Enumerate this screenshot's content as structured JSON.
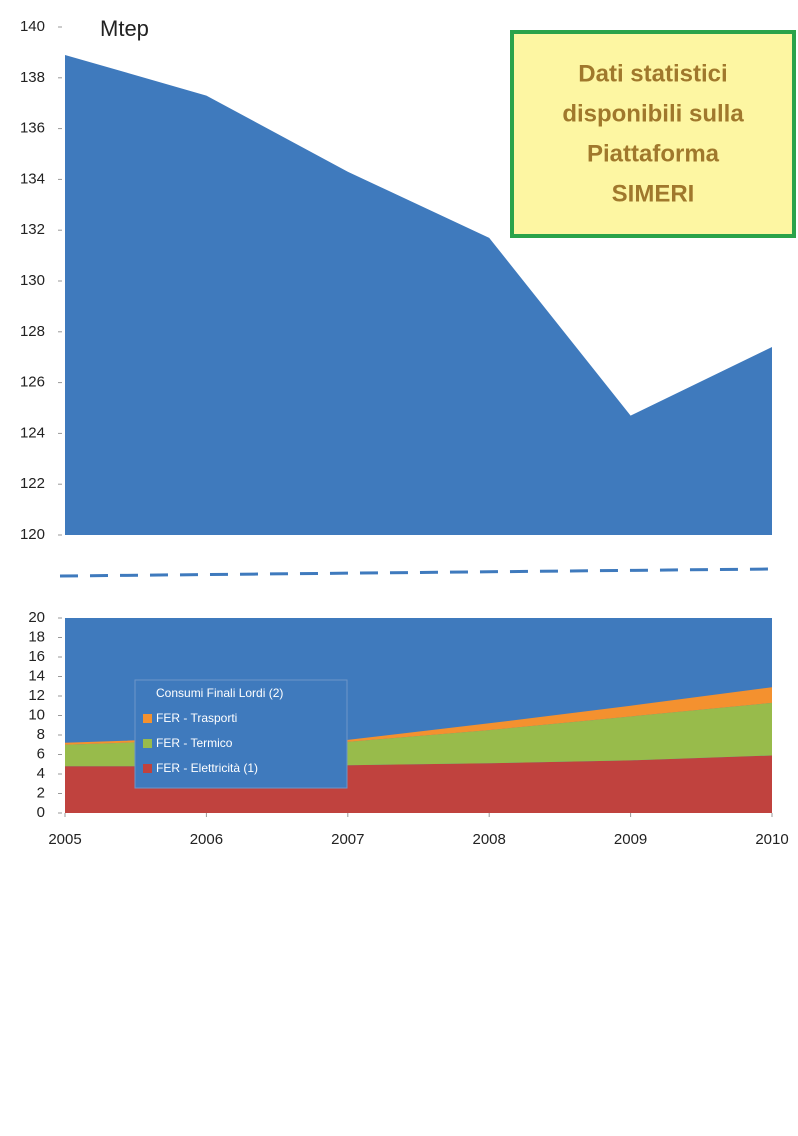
{
  "chart_data": {
    "type": "area",
    "unit_label": "Mtep",
    "annotation": [
      "Dati statistici",
      "disponibili sulla",
      "Piattaforma",
      "SIMERI"
    ],
    "x": [
      2005,
      2006,
      2007,
      2008,
      2009,
      2010
    ],
    "xlim": [
      2005,
      2010
    ],
    "xticks": [
      2005,
      2006,
      2007,
      2008,
      2009,
      2010
    ],
    "ylim": [
      0,
      20
    ],
    "yticks": [
      0,
      2,
      4,
      6,
      8,
      10,
      12,
      14,
      16,
      18,
      20
    ],
    "y2lim": [
      120,
      140
    ],
    "y2ticks": [
      120,
      122,
      124,
      126,
      128,
      130,
      132,
      134,
      136,
      138,
      140
    ],
    "stacked": true,
    "series": [
      {
        "name": "Consumi Finali Lordi (2)",
        "color": "#3f7abd",
        "axis": "y2",
        "values": [
          138.9,
          137.3,
          134.3,
          131.7,
          124.7,
          127.4
        ]
      },
      {
        "name": "FER - Trasporti",
        "color": "#f4912f",
        "values": [
          0.2,
          0.2,
          0.2,
          0.7,
          1.1,
          1.6
        ]
      },
      {
        "name": "FER - Termico",
        "color": "#98bb4b",
        "values": [
          2.2,
          2.7,
          2.4,
          3.4,
          4.5,
          5.4
        ]
      },
      {
        "name": "FER - Elettricità (1)",
        "color": "#c0423e",
        "values": [
          4.8,
          4.8,
          4.9,
          5.1,
          5.4,
          5.9
        ]
      }
    ]
  }
}
